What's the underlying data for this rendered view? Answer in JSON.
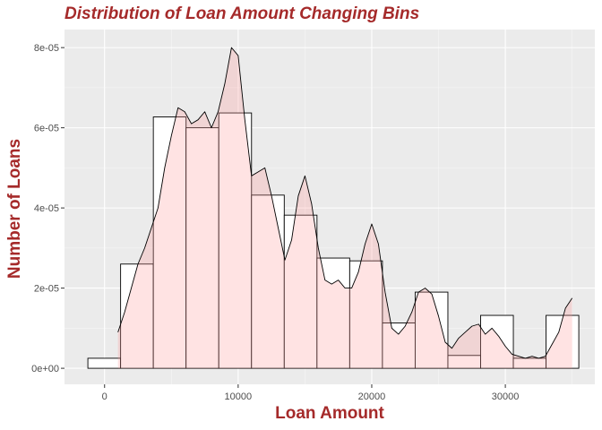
{
  "chart_data": {
    "type": "histogram",
    "title": "Distribution of Loan Amount Changing Bins",
    "xlabel": "Loan Amount",
    "ylabel": "Number of Loans",
    "xlim": [
      -3000,
      36700
    ],
    "ylim": [
      -4e-06,
      8.45e-05
    ],
    "x_ticks": [
      0,
      10000,
      20000,
      30000
    ],
    "x_tick_labels": [
      "0",
      "10000",
      "20000",
      "30000"
    ],
    "y_ticks": [
      0,
      2e-05,
      4e-05,
      6e-05,
      8e-05
    ],
    "y_tick_labels": [
      "0e+00",
      "2e-05",
      "4e-05",
      "6e-05",
      "8e-05"
    ],
    "grid": true,
    "bins": [
      {
        "x0": -1250,
        "x1": 1200,
        "density": 2.5e-06
      },
      {
        "x0": 1200,
        "x1": 3650,
        "density": 2.6e-05
      },
      {
        "x0": 3650,
        "x1": 6100,
        "density": 6.27e-05
      },
      {
        "x0": 6100,
        "x1": 8550,
        "density": 6e-05
      },
      {
        "x0": 8550,
        "x1": 11000,
        "density": 6.37e-05
      },
      {
        "x0": 11000,
        "x1": 13450,
        "density": 4.32e-05
      },
      {
        "x0": 13450,
        "x1": 15900,
        "density": 3.82e-05
      },
      {
        "x0": 15900,
        "x1": 18350,
        "density": 2.75e-05
      },
      {
        "x0": 18350,
        "x1": 20800,
        "density": 2.68e-05
      },
      {
        "x0": 20800,
        "x1": 23250,
        "density": 1.13e-05
      },
      {
        "x0": 23250,
        "x1": 25700,
        "density": 1.9e-05
      },
      {
        "x0": 25700,
        "x1": 28150,
        "density": 3.2e-06
      },
      {
        "x0": 28150,
        "x1": 30600,
        "density": 1.32e-05
      },
      {
        "x0": 30600,
        "x1": 33050,
        "density": 2.5e-06
      },
      {
        "x0": 33050,
        "x1": 35500,
        "density": 1.32e-05
      }
    ],
    "density_curve": {
      "x": [
        1000,
        1500,
        2000,
        2500,
        3000,
        3500,
        4000,
        4500,
        5000,
        5500,
        6000,
        6500,
        7000,
        7500,
        8000,
        8500,
        9000,
        9500,
        10000,
        10500,
        11000,
        11500,
        12000,
        12500,
        13000,
        13500,
        14000,
        14500,
        15000,
        15500,
        16000,
        16500,
        17000,
        17500,
        18000,
        18500,
        19000,
        19500,
        20000,
        20500,
        21000,
        21500,
        22000,
        22500,
        23000,
        23500,
        24000,
        24500,
        25000,
        25500,
        26000,
        26500,
        27000,
        27500,
        28000,
        28500,
        29000,
        29500,
        30000,
        30500,
        31000,
        31500,
        32000,
        32500,
        33000,
        33500,
        34000,
        34500,
        35000
      ],
      "y": [
        9e-06,
        1.4e-05,
        2e-05,
        2.6e-05,
        3e-05,
        3.5e-05,
        4e-05,
        5e-05,
        5.8e-05,
        6.5e-05,
        6.4e-05,
        6.1e-05,
        6.2e-05,
        6.4e-05,
        6e-05,
        6.4e-05,
        7.1e-05,
        8e-05,
        7.8e-05,
        6.2e-05,
        4.8e-05,
        4.9e-05,
        5e-05,
        4.3e-05,
        3.5e-05,
        2.7e-05,
        3.2e-05,
        4.3e-05,
        4.8e-05,
        4.1e-05,
        3e-05,
        2.2e-05,
        2.1e-05,
        2.2e-05,
        2e-05,
        2e-05,
        2.4e-05,
        3.1e-05,
        3.6e-05,
        3.1e-05,
        1.9e-05,
        1e-05,
        8.5e-06,
        1.05e-05,
        1.4e-05,
        1.9e-05,
        2e-05,
        1.85e-05,
        1.3e-05,
        6.5e-06,
        5e-06,
        7.5e-06,
        9e-06,
        1.05e-05,
        1.1e-05,
        8.5e-06,
        1e-05,
        8e-06,
        5.5e-06,
        3.5e-06,
        3e-06,
        2.5e-06,
        3e-06,
        2.5e-06,
        3e-06,
        6e-06,
        9e-06,
        1.5e-05,
        1.75e-05
      ]
    }
  }
}
